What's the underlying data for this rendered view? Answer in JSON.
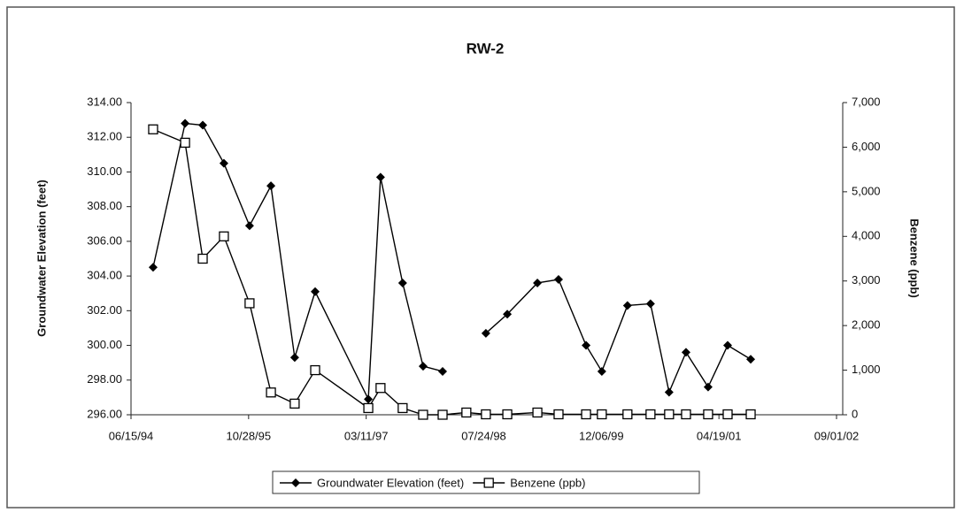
{
  "chart_data": {
    "type": "line",
    "title": "RW-2",
    "y_label": "Groundwater Elevation (feet)",
    "y2_label": "Benzene (ppb)",
    "x": [
      "1994-09-17",
      "1995-01-31",
      "1995-04-16",
      "1995-07-15",
      "1995-11-01",
      "1996-01-31",
      "1996-05-11",
      "1996-08-06",
      "1997-03-20",
      "1997-05-11",
      "1997-08-13",
      "1997-11-08",
      "1998-01-30",
      "1998-05-11",
      "1998-08-02",
      "1998-11-01",
      "1999-03-09",
      "1999-06-07",
      "1999-10-02",
      "1999-12-08",
      "2000-03-26",
      "2000-07-02",
      "2000-09-19",
      "2000-11-30",
      "2001-03-04",
      "2001-05-26",
      "2001-09-01"
    ],
    "series": [
      {
        "name": "Groundwater Elevation (feet)",
        "color": "#000000",
        "marker": "diamond",
        "values": [
          304.5,
          312.8,
          312.7,
          310.5,
          306.9,
          309.2,
          299.3,
          303.1,
          296.9,
          309.7,
          303.6,
          298.8,
          298.5,
          null,
          300.7,
          301.8,
          303.6,
          303.8,
          300.0,
          298.5,
          302.3,
          302.4,
          297.3,
          299.6,
          297.6,
          300.0,
          299.2
        ]
      },
      {
        "name": "Benzene (ppb)",
        "color": "#000000",
        "marker": "square",
        "axis": "y2",
        "values": [
          6400,
          6100,
          3500,
          4000,
          2500,
          500,
          250,
          1000,
          150,
          600,
          150,
          0,
          0,
          50,
          10,
          10,
          50,
          10,
          10,
          10,
          10,
          10,
          10,
          10,
          10,
          10,
          10
        ]
      }
    ],
    "xlim": [
      "1994-06-15",
      "2002-09-01"
    ],
    "xticks": [
      {
        "value": "1994-06-15",
        "label": "06/15/94"
      },
      {
        "value": "1995-10-28",
        "label": "10/28/95"
      },
      {
        "value": "1997-03-11",
        "label": "03/11/97"
      },
      {
        "value": "1998-07-24",
        "label": "07/24/98"
      },
      {
        "value": "1999-12-06",
        "label": "12/06/99"
      },
      {
        "value": "2001-04-19",
        "label": "04/19/01"
      },
      {
        "value": "2002-09-01",
        "label": "09/01/02"
      }
    ],
    "ylim": [
      296,
      314
    ],
    "yticks": [
      {
        "value": 296,
        "label": "296.00"
      },
      {
        "value": 298,
        "label": "298.00"
      },
      {
        "value": 300,
        "label": "300.00"
      },
      {
        "value": 302,
        "label": "302.00"
      },
      {
        "value": 304,
        "label": "304.00"
      },
      {
        "value": 306,
        "label": "306.00"
      },
      {
        "value": 308,
        "label": "308.00"
      },
      {
        "value": 310,
        "label": "310.00"
      },
      {
        "value": 312,
        "label": "312.00"
      },
      {
        "value": 314,
        "label": "314.00"
      }
    ],
    "y2lim": [
      0,
      7000
    ],
    "y2ticks": [
      0,
      {
        "value": 1000,
        "label": "1,000"
      },
      {
        "value": 2000,
        "label": "2,000"
      },
      {
        "value": 3000,
        "label": "3,000"
      },
      {
        "value": 4000,
        "label": "4,000"
      },
      {
        "value": 5000,
        "label": "5,000"
      },
      {
        "value": 6000,
        "label": "6,000"
      },
      {
        "value": 7000,
        "label": "7,000"
      }
    ],
    "legend": "bottom",
    "grid": false
  }
}
